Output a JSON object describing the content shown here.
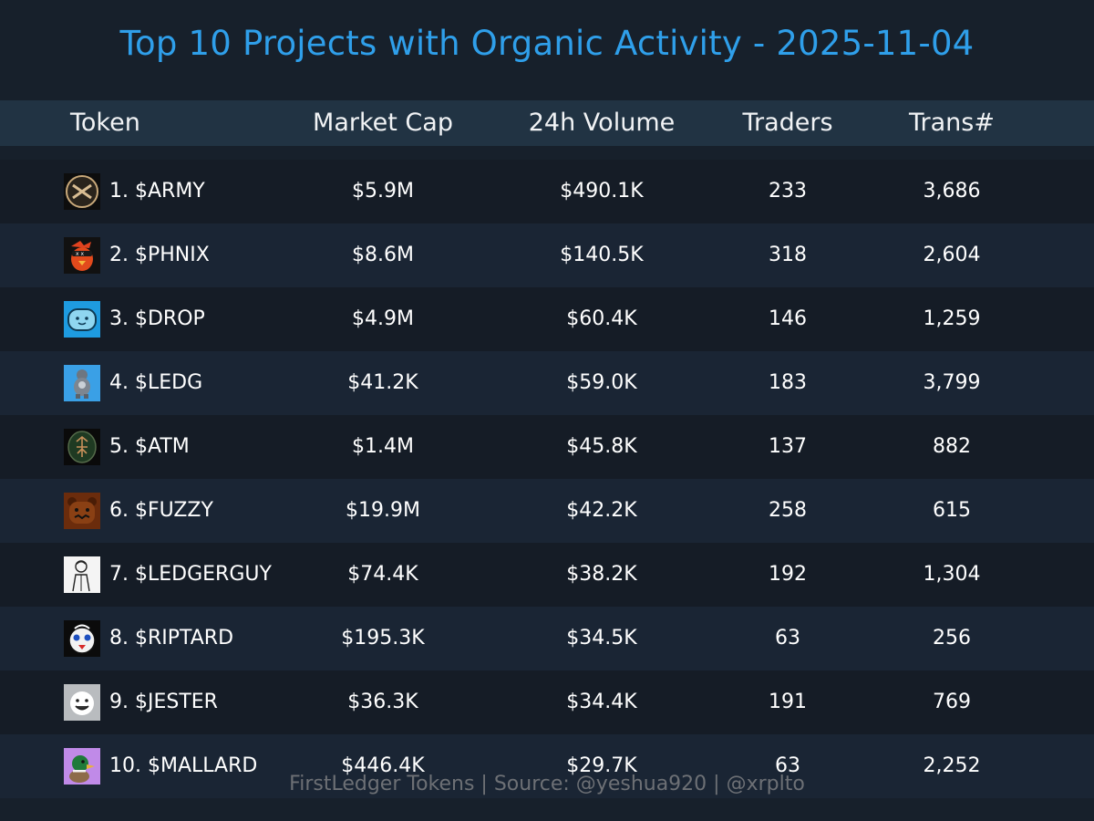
{
  "title": "Top 10 Projects with Organic Activity - 2025-11-04",
  "columns": {
    "token": "Token",
    "market_cap": "Market Cap",
    "volume": "24h Volume",
    "traders": "Traders",
    "trans": "Trans#"
  },
  "rows": [
    {
      "name": "1. $ARMY",
      "market_cap": "$5.9M",
      "volume": "$490.1K",
      "traders": "233",
      "trans": "3,686",
      "icon": "army-logo-icon"
    },
    {
      "name": "2. $PHNIX",
      "market_cap": "$8.6M",
      "volume": "$140.5K",
      "traders": "318",
      "trans": "2,604",
      "icon": "phoenix-bird-icon"
    },
    {
      "name": "3. $DROP",
      "market_cap": "$4.9M",
      "volume": "$60.4K",
      "traders": "146",
      "trans": "1,259",
      "icon": "drop-blob-icon"
    },
    {
      "name": "4. $LEDG",
      "market_cap": "$41.2K",
      "volume": "$59.0K",
      "traders": "183",
      "trans": "3,799",
      "icon": "gorilla-figure-icon"
    },
    {
      "name": "5. $ATM",
      "market_cap": "$1.4M",
      "volume": "$45.8K",
      "traders": "137",
      "trans": "882",
      "icon": "atm-emblem-icon"
    },
    {
      "name": "6. $FUZZY",
      "market_cap": "$19.9M",
      "volume": "$42.2K",
      "traders": "258",
      "trans": "615",
      "icon": "fuzzy-bear-icon"
    },
    {
      "name": "7. $LEDGERGUY",
      "market_cap": "$74.4K",
      "volume": "$38.2K",
      "traders": "192",
      "trans": "1,304",
      "icon": "ledgerguy-sketch-icon"
    },
    {
      "name": "8. $RIPTARD",
      "market_cap": "$195.3K",
      "volume": "$34.5K",
      "traders": "63",
      "trans": "256",
      "icon": "riptard-face-icon"
    },
    {
      "name": "9. $JESTER",
      "market_cap": "$36.3K",
      "volume": "$34.4K",
      "traders": "191",
      "trans": "769",
      "icon": "jester-face-icon"
    },
    {
      "name": "10. $MALLARD",
      "market_cap": "$446.4K",
      "volume": "$29.7K",
      "traders": "63",
      "trans": "2,252",
      "icon": "mallard-duck-icon"
    }
  ],
  "footer": "FirstLedger Tokens | Source: @yeshua920 | @xrplto",
  "colors": {
    "background": "#17202b",
    "header_band": "#213343",
    "title": "#2f9fea",
    "row_dark": "#151c26",
    "row_light": "#1a2534",
    "text": "#ffffff",
    "footer": "#6d7075"
  }
}
